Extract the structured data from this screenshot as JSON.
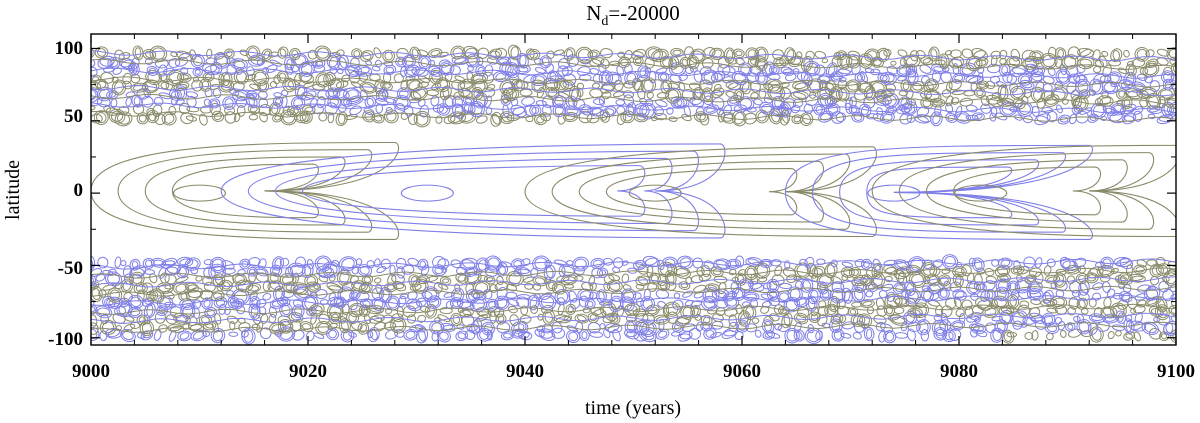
{
  "chart_data": {
    "type": "contour",
    "title_main": "N",
    "title_sub": "d",
    "title_rest": "=-20000",
    "xlabel": "time (years)",
    "ylabel": "latitude",
    "xlim": [
      9000,
      9100
    ],
    "ylim": [
      -105,
      110
    ],
    "xticks": [
      "9000",
      "9020",
      "9040",
      "9060",
      "9080",
      "9100"
    ],
    "yticks": [
      "100",
      "50",
      "0",
      "-50",
      "-100"
    ],
    "xtick_values": [
      9000,
      9020,
      9040,
      9060,
      9080,
      9100
    ],
    "ytick_values": [
      100,
      50,
      0,
      -50,
      -100
    ],
    "grid": false,
    "series": [
      {
        "color": "#8a8a6a"
      },
      {
        "color": "#7f7fe8"
      }
    ],
    "equatorial_loops": [
      {
        "series": 0,
        "t0": 9000,
        "t1": 9028,
        "lat0": -32,
        "lat1": 35,
        "tip": 9016
      },
      {
        "series": 1,
        "t0": 9012,
        "t1": 9058,
        "lat0": -31,
        "lat1": 34,
        "tip": 9052
      },
      {
        "series": 0,
        "t0": 9040,
        "t1": 9072,
        "lat0": -30,
        "lat1": 32,
        "tip": 9064
      },
      {
        "series": 1,
        "t0": 9064,
        "t1": 9092,
        "lat0": -32,
        "lat1": 33,
        "tip": 9074
      },
      {
        "series": 0,
        "t0": 9072,
        "t1": 9100,
        "lat0": -30,
        "lat1": 33,
        "tip": 9092
      }
    ]
  }
}
